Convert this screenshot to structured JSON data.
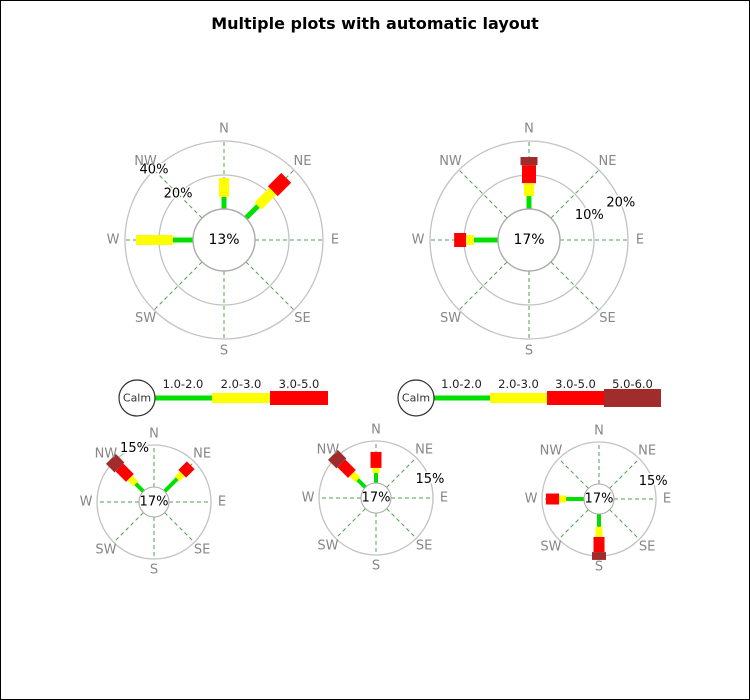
{
  "title": "Multiple plots with automatic layout",
  "colors": {
    "background": "#FFFFFF",
    "border": "#000000",
    "ring": "#C2C2C2",
    "grid_dash": "#4FA04F",
    "direction_label": "#878787",
    "label_text": "#000000",
    "legend_label": "#222222",
    "calm_circle_stroke": "#ABABAB",
    "legend_circle_stroke": "#303030",
    "bins": {
      "1.0-2.0": "#00E000",
      "2.0-3.0": "#FFFF00",
      "3.0-5.0": "#FF0000",
      "5.0-6.0": "#A02C2C"
    }
  },
  "bin_order": [
    "1.0-2.0",
    "2.0-3.0",
    "3.0-5.0",
    "5.0-6.0"
  ],
  "legends": [
    {
      "id": "legend_left",
      "calm_label": "Calm",
      "bins": [
        "1.0-2.0",
        "2.0-3.0",
        "3.0-5.0"
      ]
    },
    {
      "id": "legend_right",
      "calm_label": "Calm",
      "bins": [
        "1.0-2.0",
        "2.0-3.0",
        "3.0-5.0",
        "5.0-6.0"
      ]
    }
  ],
  "chart_data": [
    {
      "type": "wind_rose",
      "id": "top_left",
      "calm_pct": 13,
      "calm_label": "13%",
      "max_pct": 40,
      "rings": [
        {
          "pct": 20,
          "label": "20%"
        },
        {
          "pct": 40,
          "label": "40%"
        }
      ],
      "ring_label_angle_deg": -45,
      "directions": [
        "N",
        "NE",
        "E",
        "SE",
        "S",
        "SW",
        "W",
        "NW"
      ],
      "spokes": [
        {
          "dir": "N",
          "segments": [
            {
              "bin": "1.0-2.0",
              "to_pct": 7.1
            },
            {
              "bin": "2.0-3.0",
              "to_pct": 18.2
            }
          ]
        },
        {
          "dir": "NE",
          "segments": [
            {
              "bin": "1.0-2.0",
              "to_pct": 10.0
            },
            {
              "bin": "2.0-3.0",
              "to_pct": 22.4
            },
            {
              "bin": "3.0-5.0",
              "to_pct": 33.5
            }
          ]
        },
        {
          "dir": "W",
          "segments": [
            {
              "bin": "1.0-2.0",
              "to_pct": 11.8
            },
            {
              "bin": "2.0-3.0",
              "to_pct": 33.5
            }
          ]
        }
      ]
    },
    {
      "type": "wind_rose",
      "id": "top_right",
      "calm_pct": 17,
      "calm_label": "17%",
      "max_pct": 20,
      "rings": [
        {
          "pct": 10,
          "label": "10%"
        },
        {
          "pct": 20,
          "label": "20%"
        }
      ],
      "ring_label_angle_deg": 68,
      "directions": [
        "N",
        "NE",
        "E",
        "SE",
        "S",
        "SW",
        "W",
        "NW"
      ],
      "spokes": [
        {
          "dir": "N",
          "segments": [
            {
              "bin": "1.0-2.0",
              "to_pct": 3.8
            },
            {
              "bin": "2.0-3.0",
              "to_pct": 7.6
            },
            {
              "bin": "3.0-5.0",
              "to_pct": 12.9
            },
            {
              "bin": "5.0-6.0",
              "to_pct": 15.3
            }
          ]
        },
        {
          "dir": "W",
          "segments": [
            {
              "bin": "1.0-2.0",
              "to_pct": 7.1
            },
            {
              "bin": "2.0-3.0",
              "to_pct": 9.4
            },
            {
              "bin": "3.0-5.0",
              "to_pct": 12.9
            }
          ]
        }
      ]
    },
    {
      "type": "wind_rose",
      "id": "bottom_left",
      "calm_pct": 17,
      "calm_label": "17%",
      "max_pct": 15,
      "rings": [
        {
          "pct": 15,
          "label": "15%"
        }
      ],
      "ring_label_angle_deg": -20,
      "directions": [
        "N",
        "NE",
        "E",
        "SE",
        "S",
        "SW",
        "W",
        "NW"
      ],
      "spokes": [
        {
          "dir": "NW",
          "segments": [
            {
              "bin": "1.0-2.0",
              "to_pct": 3.9
            },
            {
              "bin": "2.0-3.0",
              "to_pct": 6.8
            },
            {
              "bin": "3.0-5.0",
              "to_pct": 12.1
            },
            {
              "bin": "5.0-6.0",
              "to_pct": 16.4
            }
          ]
        },
        {
          "dir": "NE",
          "segments": [
            {
              "bin": "1.0-2.0",
              "to_pct": 6.4
            },
            {
              "bin": "2.0-3.0",
              "to_pct": 8.9
            },
            {
              "bin": "3.0-5.0",
              "to_pct": 13.2
            }
          ]
        }
      ]
    },
    {
      "type": "wind_rose",
      "id": "bottom_middle",
      "calm_pct": 17,
      "calm_label": "17%",
      "max_pct": 15,
      "rings": [
        {
          "pct": 15,
          "label": "15%"
        }
      ],
      "ring_label_angle_deg": 71,
      "directions": [
        "N",
        "NE",
        "E",
        "SE",
        "S",
        "SW",
        "W",
        "NW"
      ],
      "spokes": [
        {
          "dir": "N",
          "segments": [
            {
              "bin": "1.0-2.0",
              "to_pct": 3.6
            },
            {
              "bin": "2.0-3.0",
              "to_pct": 5.4
            },
            {
              "bin": "3.0-5.0",
              "to_pct": 11.1
            }
          ]
        },
        {
          "dir": "NW",
          "segments": [
            {
              "bin": "1.0-2.0",
              "to_pct": 3.9
            },
            {
              "bin": "2.0-3.0",
              "to_pct": 6.8
            },
            {
              "bin": "3.0-5.0",
              "to_pct": 12.1
            },
            {
              "bin": "5.0-6.0",
              "to_pct": 16.4
            }
          ]
        }
      ]
    },
    {
      "type": "wind_rose",
      "id": "bottom_right",
      "calm_pct": 17,
      "calm_label": "17%",
      "max_pct": 15,
      "rings": [
        {
          "pct": 15,
          "label": "15%"
        }
      ],
      "ring_label_angle_deg": 72,
      "directions": [
        "N",
        "NE",
        "E",
        "SE",
        "S",
        "SW",
        "W",
        "NW"
      ],
      "spokes": [
        {
          "dir": "W",
          "segments": [
            {
              "bin": "1.0-2.0",
              "to_pct": 6.4
            },
            {
              "bin": "2.0-3.0",
              "to_pct": 8.9
            },
            {
              "bin": "3.0-5.0",
              "to_pct": 13.6
            }
          ]
        },
        {
          "dir": "S",
          "segments": [
            {
              "bin": "1.0-2.0",
              "to_pct": 4.6
            },
            {
              "bin": "2.0-3.0",
              "to_pct": 8.2
            },
            {
              "bin": "3.0-5.0",
              "to_pct": 13.6
            },
            {
              "bin": "5.0-6.0",
              "to_pct": 16.4
            }
          ]
        }
      ]
    }
  ]
}
